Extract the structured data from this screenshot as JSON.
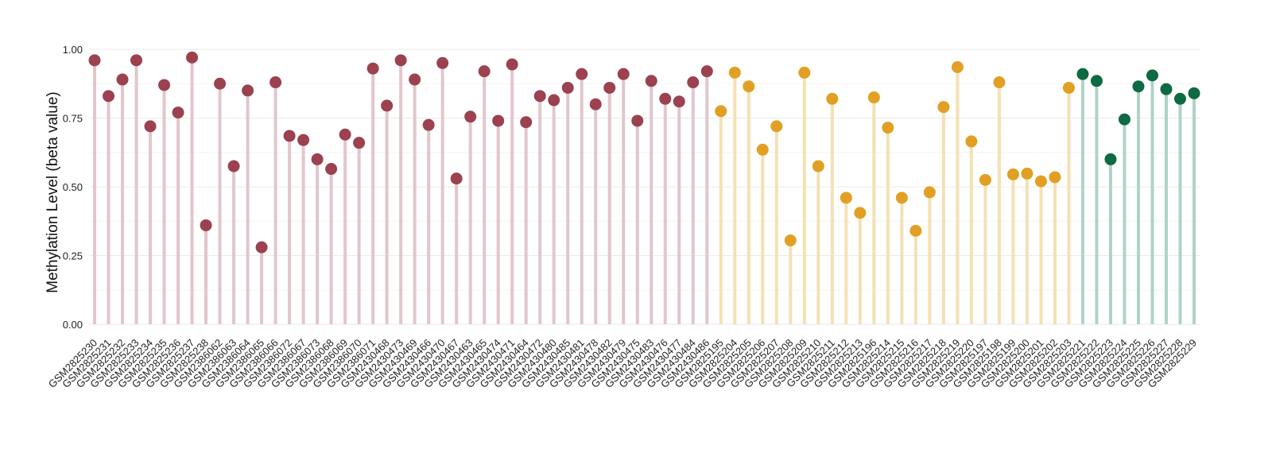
{
  "chart_data": {
    "type": "lollipop",
    "title": "",
    "xlabel": "",
    "ylabel": "Methylation Level (beta value)",
    "ylim": [
      0,
      1
    ],
    "yticks": [
      "0.00",
      "0.25",
      "0.50",
      "0.75",
      "1.00"
    ],
    "grid": true,
    "legend": "none",
    "groups": [
      {
        "color": "#9b4150",
        "stem_color": "#e2c6cc"
      },
      {
        "color": "#e1a023",
        "stem_color": "#f4e1b4"
      },
      {
        "color": "#0d6a42",
        "stem_color": "#afd3c5"
      }
    ],
    "points": [
      {
        "label": "GSM2825230",
        "value": 0.96,
        "group": 0
      },
      {
        "label": "GSM2825231",
        "value": 0.83,
        "group": 0
      },
      {
        "label": "GSM2825232",
        "value": 0.89,
        "group": 0
      },
      {
        "label": "GSM2825233",
        "value": 0.96,
        "group": 0
      },
      {
        "label": "GSM2825234",
        "value": 0.72,
        "group": 0
      },
      {
        "label": "GSM2825235",
        "value": 0.87,
        "group": 0
      },
      {
        "label": "GSM2825236",
        "value": 0.77,
        "group": 0
      },
      {
        "label": "GSM2825237",
        "value": 0.97,
        "group": 0
      },
      {
        "label": "GSM2825238",
        "value": 0.36,
        "group": 0
      },
      {
        "label": "GSM2386062",
        "value": 0.875,
        "group": 0
      },
      {
        "label": "GSM2386063",
        "value": 0.575,
        "group": 0
      },
      {
        "label": "GSM2386064",
        "value": 0.85,
        "group": 0
      },
      {
        "label": "GSM2386065",
        "value": 0.28,
        "group": 0
      },
      {
        "label": "GSM2386066",
        "value": 0.88,
        "group": 0
      },
      {
        "label": "GSM2386072",
        "value": 0.685,
        "group": 0
      },
      {
        "label": "GSM2386067",
        "value": 0.67,
        "group": 0
      },
      {
        "label": "GSM2386073",
        "value": 0.6,
        "group": 0
      },
      {
        "label": "GSM2386068",
        "value": 0.565,
        "group": 0
      },
      {
        "label": "GSM2386069",
        "value": 0.69,
        "group": 0
      },
      {
        "label": "GSM2386070",
        "value": 0.66,
        "group": 0
      },
      {
        "label": "GSM2386071",
        "value": 0.93,
        "group": 0
      },
      {
        "label": "GSM2430468",
        "value": 0.795,
        "group": 0
      },
      {
        "label": "GSM2430473",
        "value": 0.96,
        "group": 0
      },
      {
        "label": "GSM2430469",
        "value": 0.89,
        "group": 0
      },
      {
        "label": "GSM2430466",
        "value": 0.725,
        "group": 0
      },
      {
        "label": "GSM2430470",
        "value": 0.95,
        "group": 0
      },
      {
        "label": "GSM2430467",
        "value": 0.53,
        "group": 0
      },
      {
        "label": "GSM2430463",
        "value": 0.755,
        "group": 0
      },
      {
        "label": "GSM2430465",
        "value": 0.92,
        "group": 0
      },
      {
        "label": "GSM2430474",
        "value": 0.74,
        "group": 0
      },
      {
        "label": "GSM2430471",
        "value": 0.945,
        "group": 0
      },
      {
        "label": "GSM2430464",
        "value": 0.735,
        "group": 0
      },
      {
        "label": "GSM2430472",
        "value": 0.83,
        "group": 0
      },
      {
        "label": "GSM2430480",
        "value": 0.815,
        "group": 0
      },
      {
        "label": "GSM2430485",
        "value": 0.86,
        "group": 0
      },
      {
        "label": "GSM2430481",
        "value": 0.91,
        "group": 0
      },
      {
        "label": "GSM2430478",
        "value": 0.8,
        "group": 0
      },
      {
        "label": "GSM2430482",
        "value": 0.86,
        "group": 0
      },
      {
        "label": "GSM2430479",
        "value": 0.91,
        "group": 0
      },
      {
        "label": "GSM2430475",
        "value": 0.74,
        "group": 0
      },
      {
        "label": "GSM2430483",
        "value": 0.885,
        "group": 0
      },
      {
        "label": "GSM2430476",
        "value": 0.82,
        "group": 0
      },
      {
        "label": "GSM2430477",
        "value": 0.81,
        "group": 0
      },
      {
        "label": "GSM2430484",
        "value": 0.88,
        "group": 0
      },
      {
        "label": "GSM2430486",
        "value": 0.92,
        "group": 0
      },
      {
        "label": "GSM2825195",
        "value": 0.775,
        "group": 1
      },
      {
        "label": "GSM2825204",
        "value": 0.915,
        "group": 1
      },
      {
        "label": "GSM2825205",
        "value": 0.865,
        "group": 1
      },
      {
        "label": "GSM2825206",
        "value": 0.635,
        "group": 1
      },
      {
        "label": "GSM2825207",
        "value": 0.72,
        "group": 1
      },
      {
        "label": "GSM2825208",
        "value": 0.305,
        "group": 1
      },
      {
        "label": "GSM2825209",
        "value": 0.915,
        "group": 1
      },
      {
        "label": "GSM2825210",
        "value": 0.575,
        "group": 1
      },
      {
        "label": "GSM2825211",
        "value": 0.82,
        "group": 1
      },
      {
        "label": "GSM2825212",
        "value": 0.46,
        "group": 1
      },
      {
        "label": "GSM2825213",
        "value": 0.405,
        "group": 1
      },
      {
        "label": "GSM2825196",
        "value": 0.825,
        "group": 1
      },
      {
        "label": "GSM2825214",
        "value": 0.715,
        "group": 1
      },
      {
        "label": "GSM2825215",
        "value": 0.46,
        "group": 1
      },
      {
        "label": "GSM2825216",
        "value": 0.34,
        "group": 1
      },
      {
        "label": "GSM2825217",
        "value": 0.48,
        "group": 1
      },
      {
        "label": "GSM2825218",
        "value": 0.79,
        "group": 1
      },
      {
        "label": "GSM2825219",
        "value": 0.935,
        "group": 1
      },
      {
        "label": "GSM2825220",
        "value": 0.665,
        "group": 1
      },
      {
        "label": "GSM2825197",
        "value": 0.525,
        "group": 1
      },
      {
        "label": "GSM2825198",
        "value": 0.88,
        "group": 1
      },
      {
        "label": "GSM2825199",
        "value": 0.545,
        "group": 1
      },
      {
        "label": "GSM2825200",
        "value": 0.548,
        "group": 1
      },
      {
        "label": "GSM2825201",
        "value": 0.52,
        "group": 1
      },
      {
        "label": "GSM2825202",
        "value": 0.535,
        "group": 1
      },
      {
        "label": "GSM2825203",
        "value": 0.86,
        "group": 1
      },
      {
        "label": "GSM2825221",
        "value": 0.91,
        "group": 2
      },
      {
        "label": "GSM2825222",
        "value": 0.885,
        "group": 2
      },
      {
        "label": "GSM2825223",
        "value": 0.6,
        "group": 2
      },
      {
        "label": "GSM2825224",
        "value": 0.745,
        "group": 2
      },
      {
        "label": "GSM2825225",
        "value": 0.865,
        "group": 2
      },
      {
        "label": "GSM2825226",
        "value": 0.905,
        "group": 2
      },
      {
        "label": "GSM2825227",
        "value": 0.855,
        "group": 2
      },
      {
        "label": "GSM2825228",
        "value": 0.82,
        "group": 2
      },
      {
        "label": "GSM2825229",
        "value": 0.84,
        "group": 2
      }
    ]
  }
}
